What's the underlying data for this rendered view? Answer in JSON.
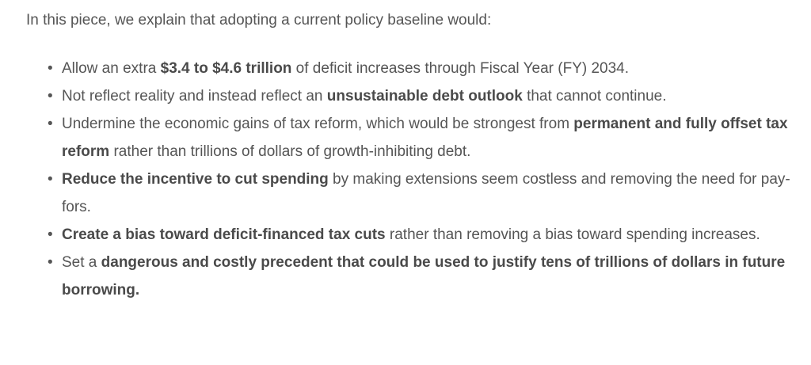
{
  "intro": "In this piece, we explain that adopting a current policy baseline would:",
  "bullet_symbol": "•",
  "items": [
    {
      "segments": [
        {
          "text": "Allow an extra ",
          "bold": false
        },
        {
          "text": "$3.4 to $4.6 trillion",
          "bold": true
        },
        {
          "text": " of deficit increases through Fiscal Year (FY) 2034.",
          "bold": false
        }
      ]
    },
    {
      "segments": [
        {
          "text": "Not reflect reality and instead reflect an ",
          "bold": false
        },
        {
          "text": "unsustainable debt outlook",
          "bold": true
        },
        {
          "text": " that cannot continue.",
          "bold": false
        }
      ]
    },
    {
      "segments": [
        {
          "text": "Undermine the economic gains of tax reform, which would be strongest from ",
          "bold": false
        },
        {
          "text": "permanent and fully offset tax reform",
          "bold": true
        },
        {
          "text": " rather than trillions of dollars of growth-inhibiting debt.",
          "bold": false
        }
      ]
    },
    {
      "segments": [
        {
          "text": "Reduce the incentive to cut spending",
          "bold": true
        },
        {
          "text": " by making extensions seem costless and removing the need for pay-fors.",
          "bold": false
        }
      ]
    },
    {
      "segments": [
        {
          "text": "Create a bias toward deficit-financed tax cuts",
          "bold": true
        },
        {
          "text": " rather than removing a bias toward spending increases.",
          "bold": false
        }
      ]
    },
    {
      "segments": [
        {
          "text": "Set a ",
          "bold": false
        },
        {
          "text": "dangerous and costly precedent that could be used to justify tens of trillions of dollars in future borrowing.",
          "bold": true
        }
      ]
    }
  ]
}
